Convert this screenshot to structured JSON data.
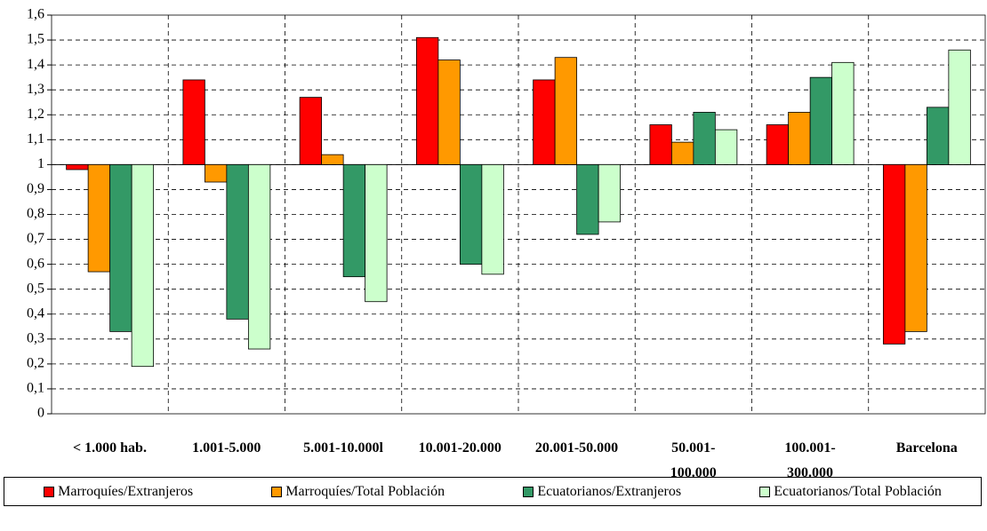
{
  "chart_data": {
    "type": "bar",
    "categories": [
      "< 1.000 hab.",
      "1.001-5.000",
      "5.001-10.000l",
      "10.001-20.000",
      "20.001-50.000",
      "50.001-\n100.000",
      "100.001-\n300.000",
      "Barcelona"
    ],
    "series": [
      {
        "name": "Marroquíes/Extranjeros",
        "color": "#ff0000",
        "values": [
          0.98,
          1.34,
          1.27,
          1.51,
          1.34,
          1.16,
          1.16,
          0.28
        ]
      },
      {
        "name": "Marroquíes/Total Población",
        "color": "#ff9900",
        "values": [
          0.57,
          0.93,
          1.04,
          1.42,
          1.43,
          1.09,
          1.21,
          0.33
        ]
      },
      {
        "name": "Ecuatorianos/Extranjeros",
        "color": "#339966",
        "values": [
          0.33,
          0.38,
          0.55,
          0.6,
          0.72,
          1.21,
          1.35,
          1.23
        ]
      },
      {
        "name": "Ecuatorianos/Total Población",
        "color": "#ccffcc",
        "values": [
          0.19,
          0.26,
          0.45,
          0.56,
          0.77,
          1.14,
          1.41,
          1.46
        ]
      }
    ],
    "baseline": 1,
    "ylim": [
      0,
      1.6
    ],
    "yticks": [
      0,
      {
        "value": 0.1,
        "label": "0,1"
      },
      {
        "value": 0.2,
        "label": "0,2"
      },
      {
        "value": 0.3,
        "label": "0,3"
      },
      {
        "value": 0.4,
        "label": "0,4"
      },
      {
        "value": 0.5,
        "label": "0,5"
      },
      {
        "value": 0.6,
        "label": "0,6"
      },
      {
        "value": 0.7,
        "label": "0,7"
      },
      {
        "value": 0.8,
        "label": "0,8"
      },
      {
        "value": 0.9,
        "label": "0,9"
      },
      1,
      {
        "value": 1.1,
        "label": "1,1"
      },
      {
        "value": 1.2,
        "label": "1,2"
      },
      {
        "value": 1.3,
        "label": "1,3"
      },
      {
        "value": 1.4,
        "label": "1,4"
      },
      {
        "value": 1.5,
        "label": "1,5"
      },
      {
        "value": 1.6,
        "label": "1,6"
      }
    ],
    "grid": true,
    "legend": "bottom"
  }
}
